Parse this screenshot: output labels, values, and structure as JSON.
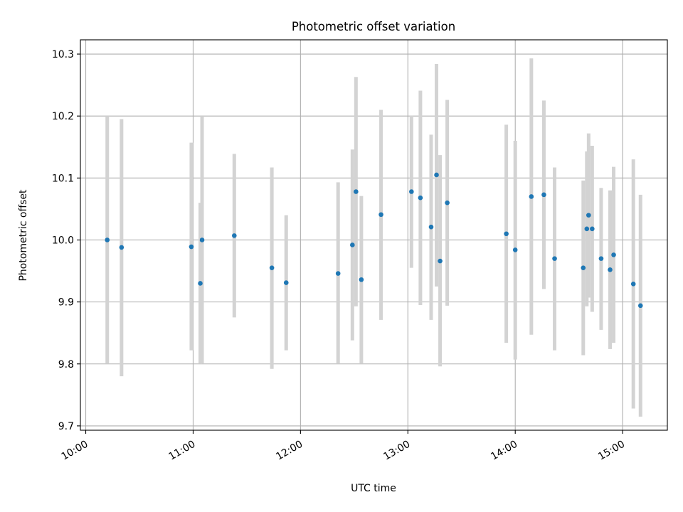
{
  "chart_data": {
    "type": "scatter",
    "title": "Photometric offset variation",
    "xlabel": "UTC time",
    "ylabel": "Photometric offset",
    "xlim": [
      "09:57",
      "15:25"
    ],
    "ylim": [
      9.693,
      10.323
    ],
    "x_ticks": [
      "10:00",
      "11:00",
      "12:00",
      "13:00",
      "14:00",
      "15:00"
    ],
    "y_ticks": [
      "9.7",
      "9.8",
      "9.9",
      "10.0",
      "10.1",
      "10.2",
      "10.3"
    ],
    "y_tick_values": [
      9.7,
      9.8,
      9.9,
      10.0,
      10.1,
      10.2,
      10.3
    ],
    "grid": true,
    "marker_color": "#1f77b4",
    "errorbar_color": "#d3d3d3",
    "series": [
      {
        "points": [
          {
            "t": "10:12",
            "y": 10.0,
            "lo": 9.8,
            "hi": 10.2
          },
          {
            "t": "10:20",
            "y": 9.988,
            "lo": 9.78,
            "hi": 10.195
          },
          {
            "t": "10:59",
            "y": 9.989,
            "lo": 9.822,
            "hi": 10.157
          },
          {
            "t": "11:04",
            "y": 9.93,
            "lo": 9.8,
            "hi": 10.06
          },
          {
            "t": "11:05",
            "y": 10.0,
            "lo": 9.8,
            "hi": 10.2
          },
          {
            "t": "11:23",
            "y": 10.007,
            "lo": 9.875,
            "hi": 10.139
          },
          {
            "t": "11:44",
            "y": 9.955,
            "lo": 9.792,
            "hi": 10.117
          },
          {
            "t": "11:52",
            "y": 9.931,
            "lo": 9.822,
            "hi": 10.04
          },
          {
            "t": "12:21",
            "y": 9.946,
            "lo": 9.8,
            "hi": 10.093
          },
          {
            "t": "12:29",
            "y": 9.992,
            "lo": 9.838,
            "hi": 10.146
          },
          {
            "t": "12:31",
            "y": 10.078,
            "lo": 9.893,
            "hi": 10.263
          },
          {
            "t": "12:34",
            "y": 9.936,
            "lo": 9.8,
            "hi": 10.071
          },
          {
            "t": "12:45",
            "y": 10.041,
            "lo": 9.871,
            "hi": 10.21
          },
          {
            "t": "13:02",
            "y": 10.078,
            "lo": 9.955,
            "hi": 10.201
          },
          {
            "t": "13:07",
            "y": 10.068,
            "lo": 9.895,
            "hi": 10.241
          },
          {
            "t": "13:13",
            "y": 10.021,
            "lo": 9.871,
            "hi": 10.17
          },
          {
            "t": "13:16",
            "y": 10.105,
            "lo": 9.925,
            "hi": 10.284
          },
          {
            "t": "13:18",
            "y": 9.966,
            "lo": 9.796,
            "hi": 10.137
          },
          {
            "t": "13:22",
            "y": 10.06,
            "lo": 9.894,
            "hi": 10.226
          },
          {
            "t": "13:55",
            "y": 10.01,
            "lo": 9.834,
            "hi": 10.186
          },
          {
            "t": "14:00",
            "y": 9.984,
            "lo": 9.807,
            "hi": 10.16
          },
          {
            "t": "14:09",
            "y": 10.07,
            "lo": 9.847,
            "hi": 10.293
          },
          {
            "t": "14:16",
            "y": 10.073,
            "lo": 9.921,
            "hi": 10.225
          },
          {
            "t": "14:22",
            "y": 9.97,
            "lo": 9.822,
            "hi": 10.117
          },
          {
            "t": "14:38",
            "y": 9.955,
            "lo": 9.814,
            "hi": 10.096
          },
          {
            "t": "14:40",
            "y": 10.018,
            "lo": 9.893,
            "hi": 10.143
          },
          {
            "t": "14:41",
            "y": 10.04,
            "lo": 9.907,
            "hi": 10.172
          },
          {
            "t": "14:43",
            "y": 10.018,
            "lo": 9.884,
            "hi": 10.152
          },
          {
            "t": "14:48",
            "y": 9.97,
            "lo": 9.855,
            "hi": 10.084
          },
          {
            "t": "14:53",
            "y": 9.952,
            "lo": 9.824,
            "hi": 10.08
          },
          {
            "t": "14:55",
            "y": 9.976,
            "lo": 9.834,
            "hi": 10.118
          },
          {
            "t": "15:06",
            "y": 9.929,
            "lo": 9.728,
            "hi": 10.13
          },
          {
            "t": "15:10",
            "y": 9.894,
            "lo": 9.715,
            "hi": 10.073
          }
        ]
      }
    ]
  }
}
